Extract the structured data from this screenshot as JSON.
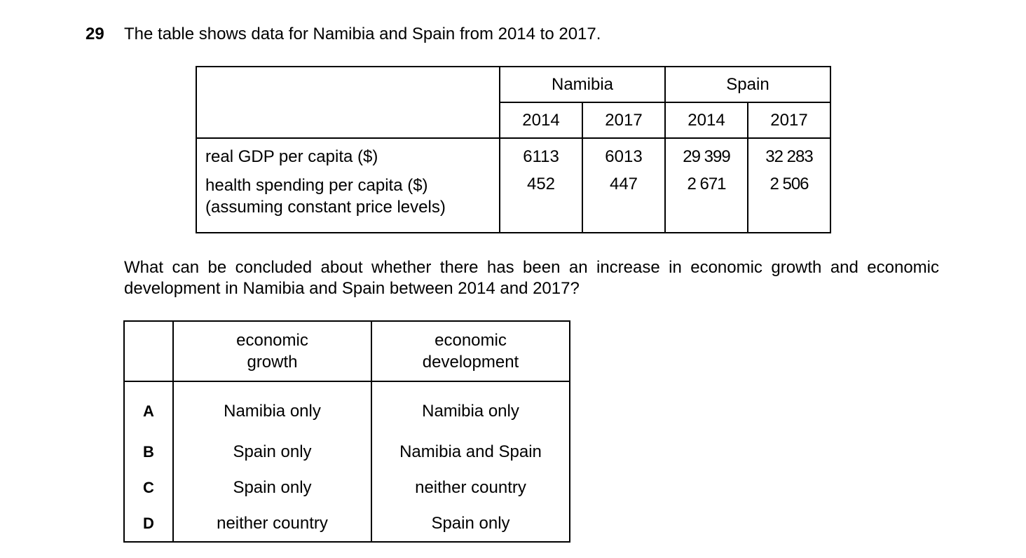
{
  "question": {
    "number": "29",
    "stem": "The table shows data for Namibia and Spain from 2014 to 2017.",
    "prompt": "What can be concluded about whether there has been an increase in economic growth and economic development in Namibia and Spain between 2014 and 2017?"
  },
  "data_table": {
    "countries": [
      "Namibia",
      "Spain"
    ],
    "years": [
      "2014",
      "2017",
      "2014",
      "2017"
    ],
    "rows": [
      {
        "label": "real GDP per capita ($)",
        "label2": "",
        "values": [
          "6113",
          "6013",
          "29 399",
          "32 283"
        ]
      },
      {
        "label": "health spending per capita ($)",
        "label2": "(assuming constant price levels)",
        "values": [
          "452",
          "447",
          "2 671",
          "2 506"
        ]
      }
    ]
  },
  "options_table": {
    "headers": [
      [
        "economic",
        "growth"
      ],
      [
        "economic",
        "development"
      ]
    ],
    "options": [
      {
        "key": "A",
        "growth": "Namibia only",
        "development": "Namibia only"
      },
      {
        "key": "B",
        "growth": "Spain only",
        "development": "Namibia and Spain"
      },
      {
        "key": "C",
        "growth": "Spain only",
        "development": "neither country"
      },
      {
        "key": "D",
        "growth": "neither country",
        "development": "Spain only"
      }
    ]
  }
}
